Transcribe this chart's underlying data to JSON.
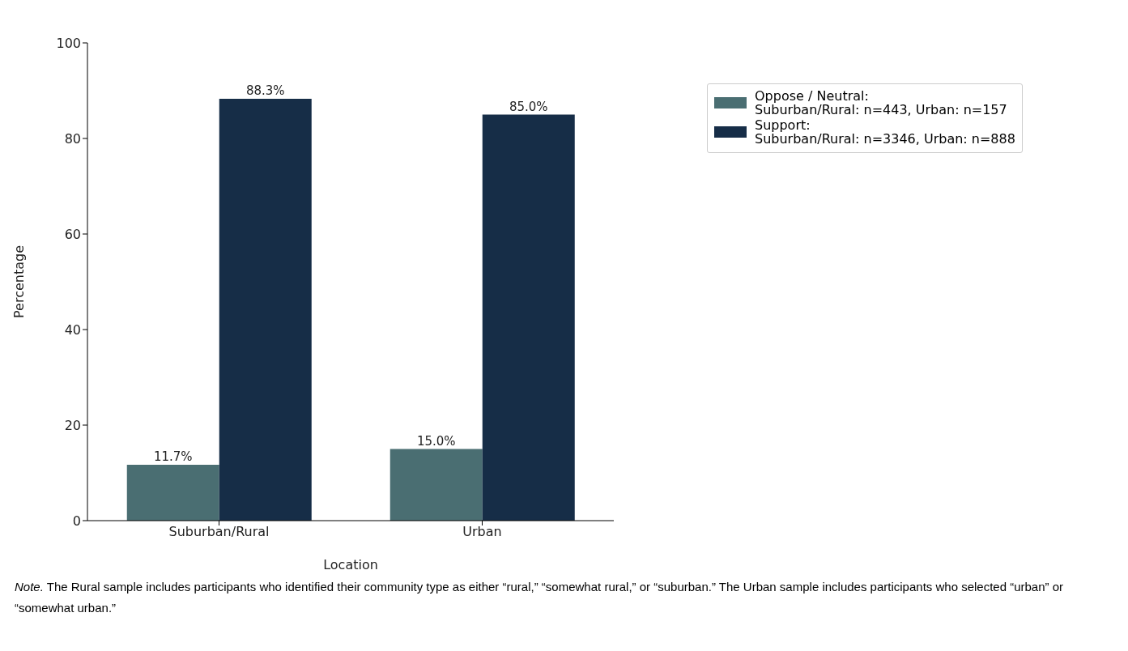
{
  "chart_data": {
    "type": "bar",
    "xlabel": "Location",
    "ylabel": "Percentage",
    "categories": [
      "Suburban/Rural",
      "Urban"
    ],
    "series": [
      {
        "name": "Oppose / Neutral:\nSuburban/Rural: n=443, Urban: n=157",
        "color": "#4a6e72",
        "values": [
          11.7,
          15.0
        ],
        "value_labels": [
          "11.7%",
          "15.0%"
        ]
      },
      {
        "name": "Support:\nSuburban/Rural: n=3346, Urban: n=888",
        "color": "#162d47",
        "values": [
          88.3,
          85.0
        ],
        "value_labels": [
          "88.3%",
          "85.0%"
        ]
      }
    ],
    "ylim": [
      0,
      100
    ],
    "yticks": [
      0,
      20,
      40,
      60,
      80,
      100
    ],
    "grid": false,
    "legend": "top right",
    "annotations": [
      "Note. The Rural sample includes participants who identified their community type as either “rural,”  “somewhat rural,” or “suburban.” The Urban sample includes participants who selected “urban” or “somewhat urban.”"
    ]
  }
}
